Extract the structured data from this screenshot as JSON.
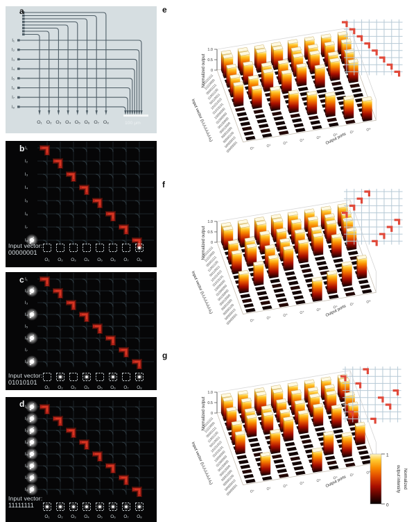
{
  "panel_labels": {
    "a": "a",
    "b": "b",
    "c": "c",
    "d": "d",
    "e": "e",
    "f": "f",
    "g": "g"
  },
  "io": {
    "inputs": [
      "I₁",
      "I₂",
      "I₃",
      "I₄",
      "I₅",
      "I₆",
      "I₇",
      "I₈"
    ],
    "outputs": [
      "O₁",
      "O₂",
      "O₃",
      "O₄",
      "O₅",
      "O₆",
      "O₇",
      "O₈"
    ]
  },
  "panels": {
    "a": {
      "scale_bar": "100 μm"
    },
    "b": {
      "caption": "Input vector:",
      "vector": "00000001",
      "active_inputs": [
        0,
        0,
        0,
        0,
        0,
        0,
        0,
        1
      ],
      "active_outputs": [
        0,
        0,
        0,
        0,
        0,
        0,
        0,
        1
      ]
    },
    "c": {
      "caption": "Input vector:",
      "vector": "01010101",
      "active_inputs": [
        0,
        1,
        0,
        1,
        0,
        1,
        0,
        1
      ],
      "active_outputs": [
        0,
        1,
        0,
        1,
        0,
        1,
        0,
        1
      ]
    },
    "d": {
      "caption": "Input vector:",
      "vector": "11111111",
      "active_inputs": [
        1,
        1,
        1,
        1,
        1,
        1,
        1,
        1
      ],
      "active_outputs": [
        1,
        1,
        1,
        1,
        1,
        1,
        1,
        1
      ]
    }
  },
  "chart_data": [
    {
      "panel": "e",
      "type": "bar3d",
      "zlabel": "Normalized output",
      "z_ticks": [
        "0",
        "0.5",
        "1.0"
      ],
      "zlim": [
        0,
        1
      ],
      "xlabel": "Output ports",
      "ylabel": "Input vector (I₁I₂I₃I₄I₅I₆I₇I₈)",
      "x_categories": [
        "O₁",
        "O₂",
        "O₃",
        "O₄",
        "O₅",
        "O₆",
        "O₇",
        "O₈"
      ],
      "y_categories": [
        "11111111",
        "11110000",
        "00001111",
        "11001100",
        "00110011",
        "10101010",
        "01010101",
        "10000000",
        "01000000",
        "00100000",
        "00010000",
        "00001000",
        "00000100",
        "00000010",
        "00000001"
      ],
      "routing_permutation": [
        1,
        2,
        3,
        4,
        5,
        6,
        7,
        8
      ],
      "values": [
        [
          1,
          1,
          1,
          1,
          1,
          1,
          1,
          1
        ],
        [
          1,
          1,
          1,
          1,
          0,
          0,
          0,
          0
        ],
        [
          0,
          0,
          0,
          0,
          1,
          1,
          1,
          1
        ],
        [
          1,
          1,
          0,
          0,
          1,
          1,
          0,
          0
        ],
        [
          0,
          0,
          1,
          1,
          0,
          0,
          1,
          1
        ],
        [
          1,
          0,
          1,
          0,
          1,
          0,
          1,
          0
        ],
        [
          0,
          1,
          0,
          1,
          0,
          1,
          0,
          1
        ],
        [
          1,
          0,
          0,
          0,
          0,
          0,
          0,
          0
        ],
        [
          0,
          1,
          0,
          0,
          0,
          0,
          0,
          0
        ],
        [
          0,
          0,
          1,
          0,
          0,
          0,
          0,
          0
        ],
        [
          0,
          0,
          0,
          1,
          0,
          0,
          0,
          0
        ],
        [
          0,
          0,
          0,
          0,
          1,
          0,
          0,
          0
        ],
        [
          0,
          0,
          0,
          0,
          0,
          1,
          0,
          0
        ],
        [
          0,
          0,
          0,
          0,
          0,
          0,
          1,
          0
        ],
        [
          0,
          0,
          0,
          0,
          0,
          0,
          0,
          1
        ]
      ]
    },
    {
      "panel": "f",
      "type": "bar3d",
      "zlabel": "Normalized output",
      "z_ticks": [
        "0",
        "0.5",
        "1.0"
      ],
      "zlim": [
        0,
        1
      ],
      "xlabel": "Output ports",
      "ylabel": "Input vector (I₁I₂I₃I₄I₅I₆I₇I₈)",
      "x_categories": [
        "O₁",
        "O₂",
        "O₃",
        "O₄",
        "O₅",
        "O₆",
        "O₇",
        "O₈"
      ],
      "y_categories": [
        "11111111",
        "11110000",
        "00001111",
        "11001100",
        "00110011",
        "10101010",
        "01010101",
        "10000000",
        "01000000",
        "00100000",
        "00010000",
        "00001000",
        "00000100",
        "00000010",
        "00000001"
      ],
      "routing_permutation": [
        4,
        3,
        2,
        1,
        8,
        7,
        6,
        5
      ],
      "values": [
        [
          1,
          1,
          1,
          1,
          1,
          1,
          1,
          1
        ],
        [
          1,
          1,
          1,
          1,
          0,
          0,
          0,
          0
        ],
        [
          0,
          0,
          0,
          0,
          1,
          1,
          1,
          1
        ],
        [
          0,
          0,
          1,
          1,
          0,
          0,
          1,
          1
        ],
        [
          1,
          1,
          0,
          0,
          1,
          1,
          0,
          0
        ],
        [
          0,
          1,
          0,
          1,
          0,
          1,
          0,
          1
        ],
        [
          1,
          0,
          1,
          0,
          1,
          0,
          1,
          0
        ],
        [
          0,
          0,
          0,
          1,
          0,
          0,
          0,
          0
        ],
        [
          0,
          0,
          1,
          0,
          0,
          0,
          0,
          0
        ],
        [
          0,
          1,
          0,
          0,
          0,
          0,
          0,
          0
        ],
        [
          1,
          0,
          0,
          0,
          0,
          0,
          0,
          0
        ],
        [
          0,
          0,
          0,
          0,
          0,
          0,
          0,
          1
        ],
        [
          0,
          0,
          0,
          0,
          0,
          0,
          1,
          0
        ],
        [
          0,
          0,
          0,
          0,
          0,
          1,
          0,
          0
        ],
        [
          0,
          0,
          0,
          0,
          1,
          0,
          0,
          0
        ]
      ]
    },
    {
      "panel": "g",
      "type": "bar3d",
      "zlabel": "Normalized output",
      "z_ticks": [
        "0",
        "0.5",
        "1.0"
      ],
      "zlim": [
        0,
        1
      ],
      "xlabel": "Output ports",
      "ylabel": "Input vector (I₁I₂I₃I₄I₅I₆I₇I₈)",
      "x_categories": [
        "O₁",
        "O₂",
        "O₃",
        "O₄",
        "O₅",
        "O₆",
        "O₇",
        "O₈"
      ],
      "y_categories": [
        "11111111",
        "11110000",
        "00001111",
        "11001100",
        "00110011",
        "10101010",
        "01010101",
        "10000000",
        "01000000",
        "00100000",
        "00010000",
        "00001000",
        "00000100",
        "00000010",
        "00000001"
      ],
      "routing_permutation": [
        4,
        1,
        3,
        8,
        6,
        7,
        2,
        5
      ],
      "values": [
        [
          1,
          1,
          1,
          1,
          1,
          1,
          1,
          1
        ],
        [
          1,
          0,
          1,
          1,
          0,
          0,
          0,
          1
        ],
        [
          0,
          1,
          0,
          0,
          1,
          1,
          1,
          0
        ],
        [
          1,
          0,
          0,
          1,
          0,
          1,
          1,
          0
        ],
        [
          0,
          1,
          1,
          0,
          1,
          0,
          0,
          1
        ],
        [
          0,
          1,
          1,
          1,
          0,
          1,
          0,
          0
        ],
        [
          1,
          0,
          0,
          0,
          1,
          0,
          1,
          1
        ],
        [
          0,
          0,
          0,
          1,
          0,
          0,
          0,
          0
        ],
        [
          1,
          0,
          0,
          0,
          0,
          0,
          0,
          0
        ],
        [
          0,
          0,
          1,
          0,
          0,
          0,
          0,
          0
        ],
        [
          0,
          0,
          0,
          0,
          0,
          0,
          0,
          1
        ],
        [
          0,
          0,
          0,
          0,
          0,
          1,
          0,
          0
        ],
        [
          0,
          0,
          0,
          0,
          0,
          0,
          1,
          0
        ],
        [
          0,
          1,
          0,
          0,
          0,
          0,
          0,
          0
        ],
        [
          0,
          0,
          0,
          0,
          1,
          0,
          0,
          0
        ]
      ]
    }
  ],
  "colorbar": {
    "title_lines": [
      "Normalized",
      "output intensity"
    ],
    "max": "1",
    "min": "0",
    "colormap": [
      "#050000",
      "#4a0300",
      "#a80e00",
      "#e04a00",
      "#f98b00",
      "#ffc930",
      "#fff6c8"
    ]
  }
}
